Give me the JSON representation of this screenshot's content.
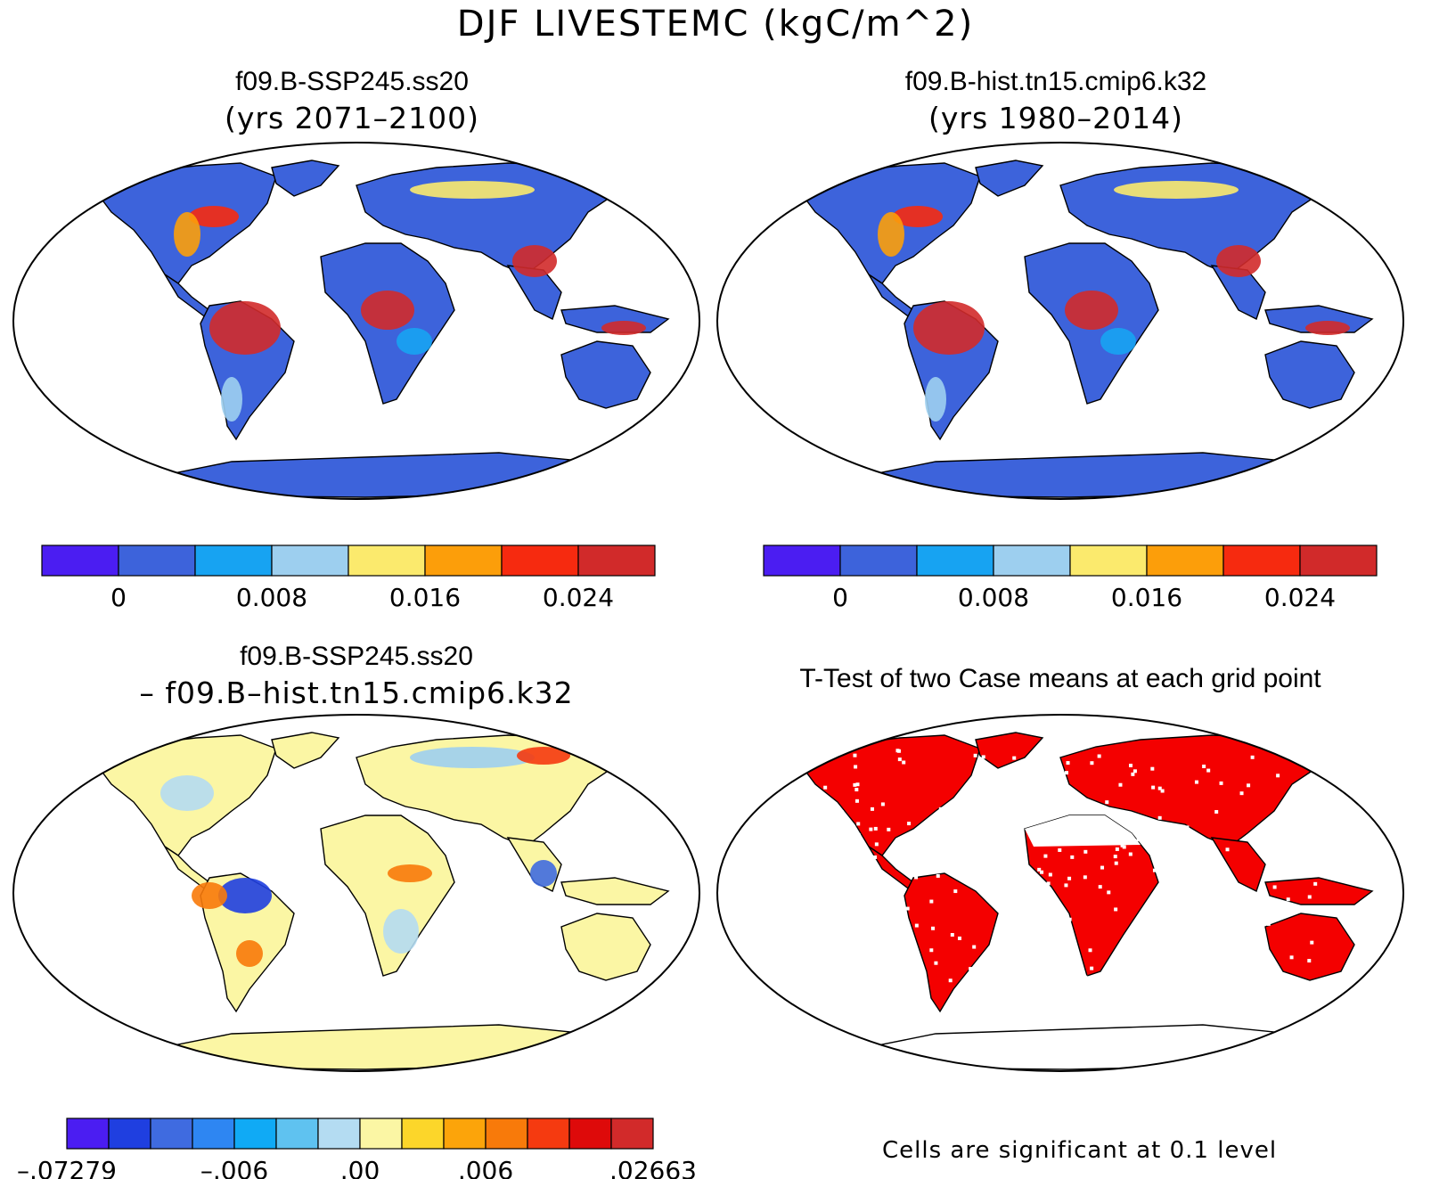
{
  "figure": {
    "title": "DJF LIVESTEMC (kgC/m^2)"
  },
  "panels": [
    {
      "title": "f09.B-SSP245.ss20",
      "subtitle": "(yrs 2071–2100)"
    },
    {
      "title": "f09.B-hist.tn15.cmip6.k32",
      "subtitle": "(yrs 1980–2014)"
    },
    {
      "title": "f09.B-SSP245.ss20",
      "subtitle": "– f09.B–hist.tn15.cmip6.k32"
    },
    {
      "title": "T-Test of two Case means at each grid point",
      "subtitle": ""
    }
  ],
  "colorbars": {
    "case": {
      "colors": [
        "#4B1DF2",
        "#3D63DB",
        "#17A3F2",
        "#9DCFEF",
        "#FBEA6D",
        "#FC9E0A",
        "#F62A0F",
        "#D12A2A"
      ],
      "labels": [
        "0",
        "0.008",
        "0.016",
        "0.024"
      ]
    },
    "diff": {
      "colors": [
        "#4B1DF2",
        "#1F3FE0",
        "#3F6BE0",
        "#2E86F2",
        "#10AAF5",
        "#5FC2F0",
        "#B4DCF2",
        "#FBF6A4",
        "#FCD62A",
        "#FCA40A",
        "#F87A0A",
        "#F53A10",
        "#DE0A0A",
        "#D22A2A"
      ],
      "labels": [
        "–.07279",
        "–.006",
        ".00",
        ".006",
        ".02663"
      ]
    }
  },
  "map_colors": {
    "ocean": "#ffffff",
    "land_case": "#3D63DB",
    "land_diff": "#FBF6A4",
    "significant": "#F40000"
  },
  "ttest_note": "Cells are significant at 0.1 level"
}
